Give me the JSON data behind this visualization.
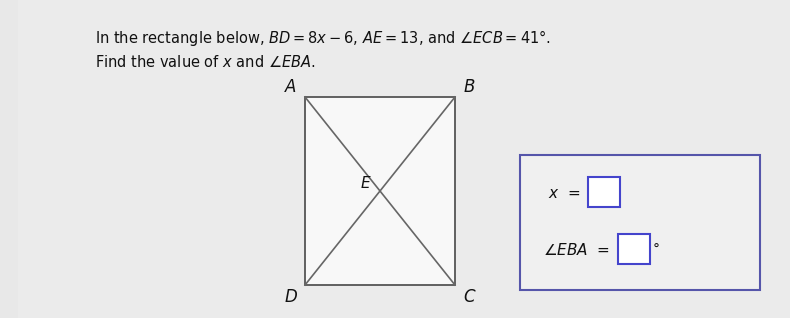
{
  "bg_color": "#e8e8e8",
  "rect_face": "#f8f8f8",
  "rect_edge": "#555555",
  "line_color": "#666666",
  "text_color": "#111111",
  "answer_box_face": "#f0f0f0",
  "answer_box_edge": "#5555aa",
  "answer_rect_face": "white",
  "answer_rect_edge": "#4444cc",
  "title1": "In the rectangle below, $BD=8x-6$, $AE=13$, and $\\angle ECB=41°$.",
  "title2": "Find the value of $x$ and $\\angle EBA$.",
  "label_A": "A",
  "label_B": "B",
  "label_C": "C",
  "label_D": "D",
  "label_E": "E",
  "x_label": "$x$  =",
  "angle_label": "$\\angle EBA$  ="
}
